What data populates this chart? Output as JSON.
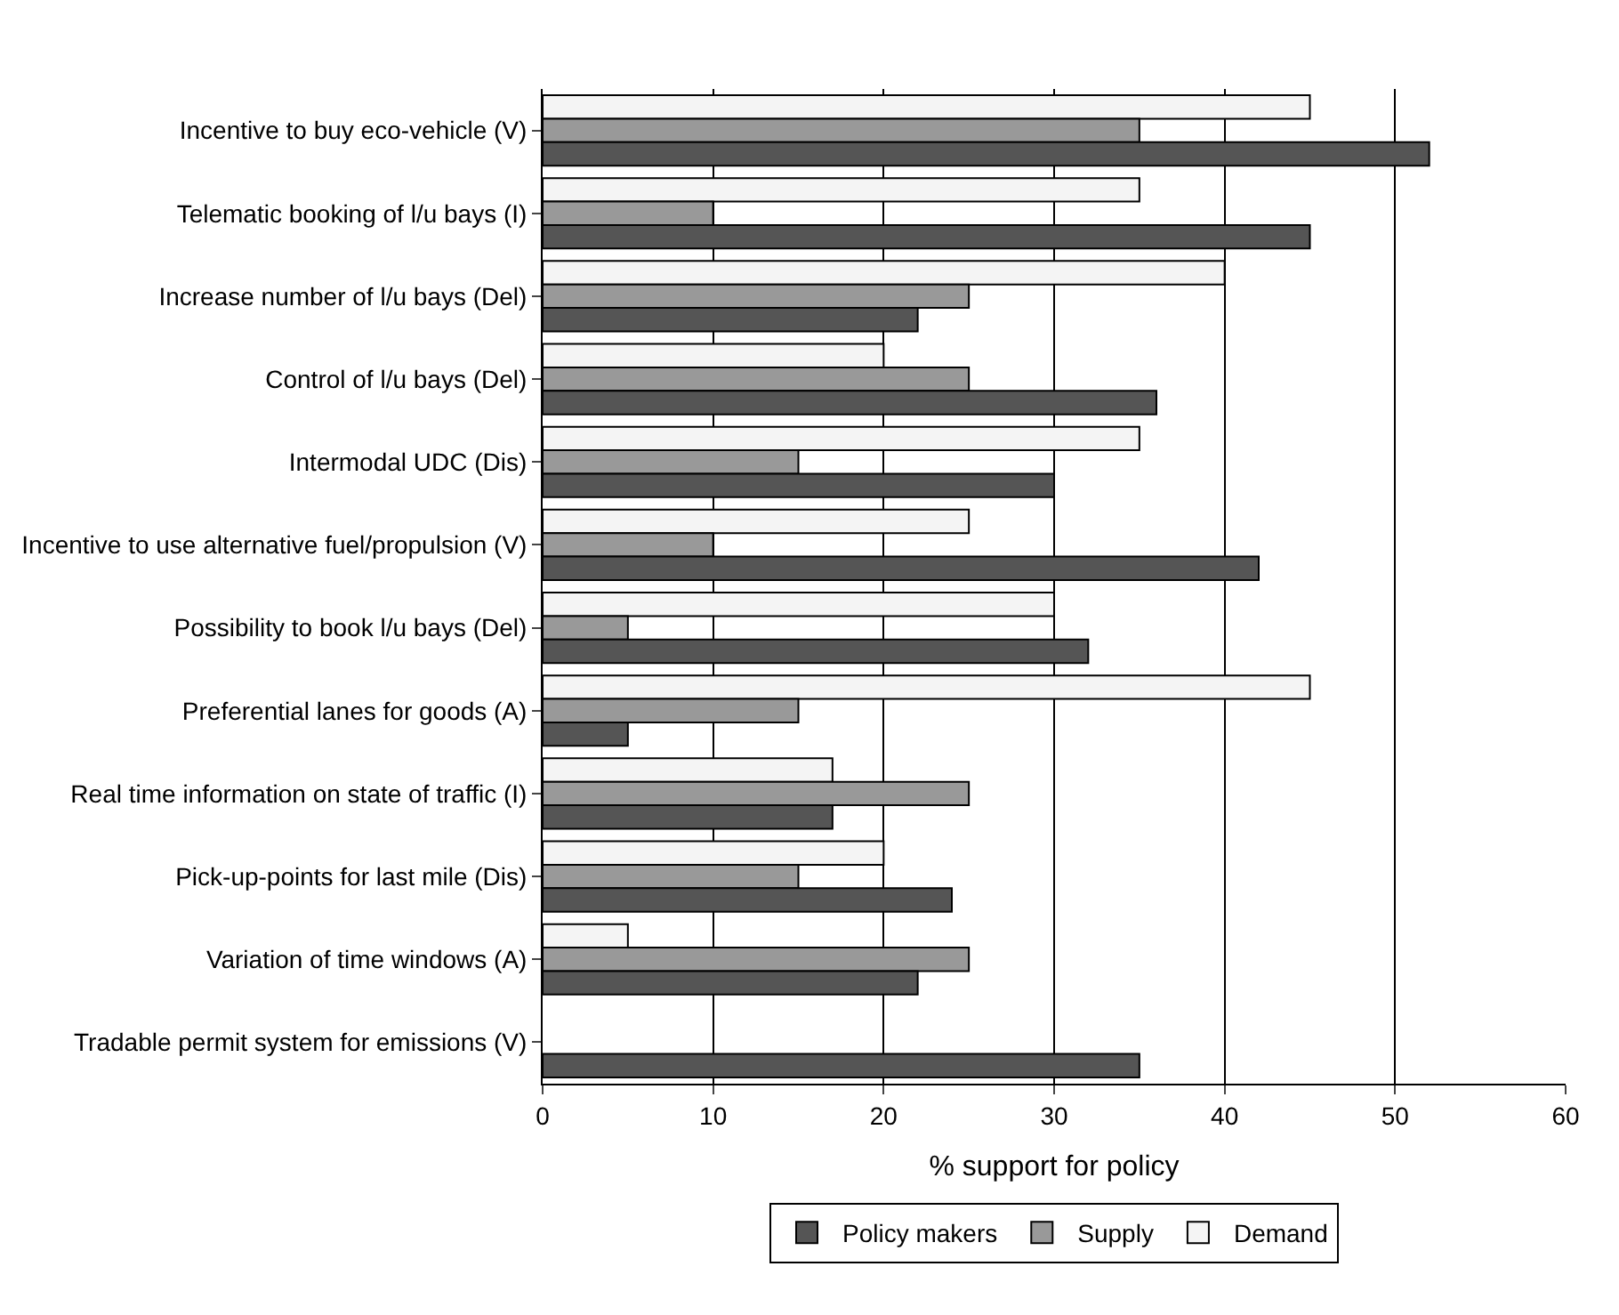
{
  "chart_data": {
    "type": "bar",
    "orientation": "horizontal",
    "xlabel": "% support for policy",
    "categories": [
      "Incentive to buy eco-vehicle (V)",
      "Telematic booking of l/u bays (I)",
      "Increase number of l/u bays (Del)",
      "Control of l/u bays (Del)",
      "Intermodal UDC (Dis)",
      "Incentive to use alternative fuel/propulsion (V)",
      "Possibility to book l/u bays (Del)",
      "Preferential lanes for goods (A)",
      "Real time information on state of traffic (I)",
      "Pick-up-points for last mile (Dis)",
      "Variation of time windows (A)",
      "Tradable permit system for emissions (V)"
    ],
    "series": [
      {
        "name": "Demand",
        "color": "#f4f4f4",
        "values": [
          45,
          35,
          40,
          20,
          35,
          25,
          30,
          45,
          17,
          20,
          5,
          0
        ]
      },
      {
        "name": "Supply",
        "color": "#999999",
        "values": [
          35,
          10,
          25,
          25,
          15,
          10,
          5,
          15,
          25,
          15,
          25,
          0
        ]
      },
      {
        "name": "Policy makers",
        "color": "#555555",
        "values": [
          52,
          45,
          22,
          36,
          30,
          42,
          32,
          5,
          17,
          24,
          22,
          35
        ]
      }
    ],
    "xlim": [
      0,
      60
    ],
    "xticks": [
      0,
      10,
      20,
      30,
      40,
      50,
      60
    ],
    "grid": "x",
    "legend": "bottom"
  }
}
